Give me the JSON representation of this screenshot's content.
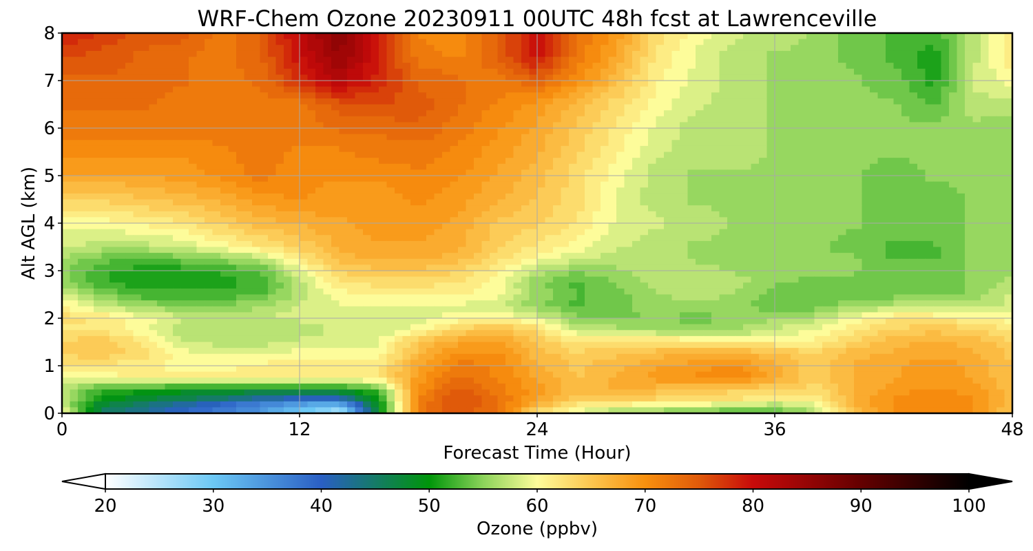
{
  "chart_data": {
    "type": "heatmap",
    "title": "WRF-Chem Ozone  20230911 00UTC 48h fcst at Lawrenceville",
    "xlabel": "Forecast Time (Hour)",
    "ylabel": "Alt AGL (km)",
    "xlim": [
      0,
      48
    ],
    "ylim": [
      0,
      8
    ],
    "x_ticks": [
      0,
      12,
      24,
      36,
      48
    ],
    "y_ticks": [
      0,
      1,
      2,
      3,
      4,
      5,
      6,
      7,
      8
    ],
    "grid": true,
    "colorbar": {
      "label": "Ozone  (ppbv)",
      "min": 20,
      "max": 100,
      "ticks": [
        20,
        30,
        40,
        50,
        60,
        70,
        80,
        90,
        100
      ],
      "extend": "both",
      "orientation": "horizontal",
      "colors": [
        {
          "v": 20,
          "c": "#ffffff"
        },
        {
          "v": 30,
          "c": "#6cc8f5"
        },
        {
          "v": 40,
          "c": "#2a5fc4"
        },
        {
          "v": 50,
          "c": "#00960a"
        },
        {
          "v": 55,
          "c": "#8cd35a"
        },
        {
          "v": 60,
          "c": "#fdfc9a"
        },
        {
          "v": 65,
          "c": "#fcc64f"
        },
        {
          "v": 70,
          "c": "#f8900e"
        },
        {
          "v": 75,
          "c": "#e05a0a"
        },
        {
          "v": 80,
          "c": "#c80a0a"
        },
        {
          "v": 90,
          "c": "#640000"
        },
        {
          "v": 100,
          "c": "#000000"
        }
      ]
    },
    "x": [
      0,
      2,
      4,
      6,
      8,
      10,
      12,
      14,
      16,
      18,
      20,
      22,
      24,
      26,
      28,
      30,
      32,
      34,
      36,
      38,
      40,
      42,
      44,
      46,
      48
    ],
    "y": [
      0,
      0.1,
      0.25,
      0.5,
      0.75,
      1,
      1.25,
      1.5,
      1.75,
      2,
      2.25,
      2.5,
      2.75,
      3,
      3.25,
      3.5,
      4,
      4.5,
      5,
      5.5,
      6,
      6.5,
      7,
      7.5,
      8
    ],
    "z": [
      [
        61,
        46,
        45,
        44,
        42,
        40,
        35,
        28,
        48,
        72,
        74,
        72,
        62,
        60,
        58,
        57,
        56,
        55,
        55,
        57,
        66,
        70,
        71,
        70,
        65
      ],
      [
        58,
        46,
        42,
        38,
        35,
        32,
        28,
        26,
        48,
        72,
        76,
        73,
        65,
        60,
        57,
        56,
        55,
        54,
        54,
        57,
        66,
        70,
        71,
        70,
        65
      ],
      [
        57,
        49,
        47,
        45,
        43,
        40,
        38,
        38,
        50,
        71,
        76,
        73,
        68,
        64,
        64,
        63,
        63,
        62,
        60,
        60,
        67,
        70,
        71,
        70,
        66
      ],
      [
        57,
        52,
        51,
        50,
        50,
        49,
        49,
        50,
        53,
        70,
        75,
        72,
        69,
        66,
        67,
        66,
        65,
        64,
        64,
        63,
        67,
        69,
        70,
        69,
        66
      ],
      [
        60,
        60,
        61,
        62,
        62,
        62,
        62,
        61,
        62,
        69,
        73,
        71,
        68,
        65,
        67,
        69,
        70,
        71,
        68,
        64,
        67,
        68,
        69,
        68,
        65
      ],
      [
        62,
        62,
        61,
        60,
        60,
        61,
        62,
        62,
        62,
        68,
        72,
        71,
        67,
        65,
        66,
        68,
        69,
        70,
        67,
        64,
        67,
        68,
        69,
        68,
        65
      ],
      [
        64,
        65,
        63,
        60,
        59,
        59,
        60,
        60,
        60,
        66,
        70,
        70,
        66,
        64,
        65,
        66,
        67,
        67,
        66,
        64,
        66,
        67,
        68,
        67,
        65
      ],
      [
        64,
        65,
        62,
        58,
        57,
        57,
        58,
        58,
        59,
        65,
        68,
        69,
        65,
        62,
        63,
        63,
        62,
        61,
        61,
        61,
        64,
        66,
        67,
        66,
        64
      ],
      [
        62,
        62,
        60,
        57,
        56,
        56,
        57,
        58,
        58,
        60,
        64,
        66,
        63,
        58,
        57,
        56,
        55,
        56,
        58,
        59,
        62,
        64,
        65,
        64,
        62
      ],
      [
        63,
        62,
        60,
        58,
        57,
        58,
        58,
        58,
        58,
        58,
        60,
        61,
        59,
        55,
        54,
        55,
        54,
        55,
        56,
        57,
        60,
        62,
        62,
        61,
        60
      ],
      [
        61,
        58,
        56,
        55,
        55,
        56,
        58,
        59,
        59,
        59,
        59,
        58,
        55,
        53,
        54,
        56,
        56,
        55,
        54,
        54,
        56,
        57,
        57,
        57,
        58
      ],
      [
        58,
        55,
        52,
        52,
        52,
        53,
        57,
        60,
        61,
        61,
        61,
        60,
        56,
        53,
        54,
        56,
        57,
        56,
        54,
        53,
        53,
        54,
        54,
        55,
        58
      ],
      [
        56,
        52,
        51,
        51,
        51,
        52,
        57,
        62,
        63,
        63,
        62,
        60,
        55,
        53,
        55,
        57,
        58,
        57,
        55,
        54,
        54,
        54,
        54,
        55,
        57
      ],
      [
        55,
        52,
        51,
        51,
        52,
        53,
        59,
        64,
        65,
        65,
        64,
        61,
        57,
        55,
        56,
        57,
        57,
        56,
        56,
        56,
        55,
        54,
        54,
        55,
        56
      ],
      [
        56,
        54,
        53,
        54,
        55,
        57,
        62,
        66,
        67,
        67,
        66,
        63,
        60,
        58,
        57,
        57,
        56,
        56,
        55,
        55,
        55,
        53,
        53,
        55,
        56
      ],
      [
        58,
        57,
        57,
        58,
        60,
        62,
        64,
        67,
        68,
        68,
        67,
        64,
        62,
        60,
        58,
        57,
        56,
        56,
        55,
        55,
        54,
        53,
        53,
        55,
        56
      ],
      [
        60,
        60,
        61,
        62,
        64,
        66,
        67,
        68,
        69,
        69,
        68,
        65,
        64,
        62,
        59,
        58,
        57,
        56,
        56,
        56,
        55,
        54,
        54,
        55,
        56
      ],
      [
        64,
        64,
        65,
        66,
        67,
        69,
        70,
        69,
        69,
        70,
        69,
        67,
        65,
        63,
        59,
        57,
        56,
        56,
        56,
        56,
        55,
        54,
        54,
        55,
        56
      ],
      [
        68,
        68,
        68,
        69,
        70,
        72,
        70,
        70,
        70,
        71,
        70,
        68,
        66,
        63,
        60,
        57,
        56,
        56,
        56,
        56,
        55,
        54,
        55,
        55,
        56
      ],
      [
        70,
        70,
        70,
        70,
        71,
        72,
        71,
        71,
        72,
        72,
        71,
        69,
        67,
        64,
        61,
        58,
        57,
        57,
        56,
        56,
        55,
        55,
        55,
        56,
        55
      ],
      [
        72,
        72,
        72,
        72,
        72,
        72,
        72,
        73,
        73,
        74,
        72,
        70,
        68,
        65,
        62,
        59,
        57,
        57,
        56,
        56,
        55,
        55,
        55,
        56,
        55
      ],
      [
        73,
        73,
        73,
        72,
        72,
        72,
        72,
        75,
        76,
        75,
        73,
        71,
        69,
        66,
        63,
        60,
        58,
        57,
        56,
        56,
        55,
        55,
        53,
        57,
        57
      ],
      [
        74,
        74,
        74,
        73,
        72,
        73,
        78,
        82,
        78,
        74,
        73,
        72,
        74,
        70,
        66,
        61,
        59,
        57,
        56,
        56,
        55,
        54,
        51,
        58,
        60
      ],
      [
        76,
        75,
        74,
        73,
        72,
        74,
        80,
        85,
        79,
        72,
        71,
        74,
        80,
        72,
        68,
        62,
        59,
        57,
        56,
        56,
        54,
        53,
        51,
        57,
        62
      ],
      [
        79,
        77,
        75,
        75,
        72,
        74,
        81,
        86,
        79,
        71,
        70,
        74,
        80,
        73,
        69,
        63,
        60,
        58,
        57,
        56,
        54,
        53,
        52,
        57,
        62
      ]
    ]
  }
}
